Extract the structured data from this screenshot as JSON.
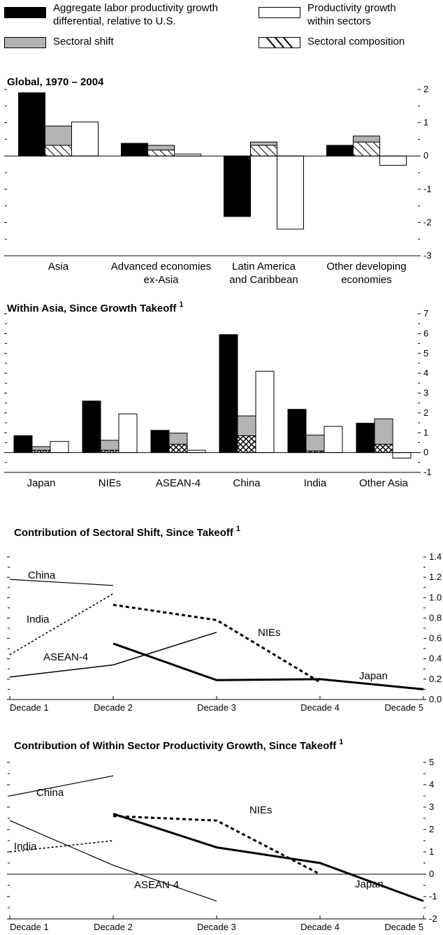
{
  "legend": {
    "aggregate": "Aggregate labor productivity growth\ndifferential, relative to U.S.",
    "within": "Productivity growth\nwithin sectors",
    "shift": "Sectoral shift",
    "composition": "Sectoral composition"
  },
  "chart_data": [
    {
      "type": "bar",
      "title": "Global, 1970 – 2004",
      "categories": [
        "Asia",
        "Advanced economies\nex-Asia",
        "Latin America\nand Caribbean",
        "Other developing\neconomies"
      ],
      "series": [
        {
          "name": "Aggregate labor productivity growth differential, relative to U.S.",
          "values": [
            1.9,
            0.38,
            -1.82,
            0.32
          ]
        },
        {
          "name": "Sectoral composition",
          "values": [
            0.32,
            0.18,
            0.32,
            0.42
          ]
        },
        {
          "name": "Sectoral shift",
          "values": [
            0.58,
            0.14,
            0.1,
            0.18
          ]
        },
        {
          "name": "Productivity growth within sectors",
          "values": [
            1.02,
            0.06,
            -2.2,
            -0.28
          ]
        }
      ],
      "ylim": [
        -3,
        2
      ],
      "yticks": [
        "2",
        "1",
        "0",
        "-1",
        "-2",
        "-3"
      ]
    },
    {
      "type": "bar",
      "title": "Within Asia, Since Growth Takeoff",
      "title_sup": "1",
      "categories": [
        "Japan",
        "NIEs",
        "ASEAN-4",
        "China",
        "India",
        "Other Asia"
      ],
      "series": [
        {
          "name": "Aggregate labor productivity growth differential, relative to U.S.",
          "values": [
            0.85,
            2.6,
            1.12,
            5.95,
            2.18,
            1.48
          ]
        },
        {
          "name": "Sectoral composition",
          "values": [
            0.12,
            0.12,
            0.42,
            0.85,
            0.08,
            0.42
          ]
        },
        {
          "name": "Sectoral shift",
          "values": [
            0.18,
            0.5,
            0.56,
            1.0,
            0.8,
            1.28
          ]
        },
        {
          "name": "Productivity growth within sectors",
          "values": [
            0.56,
            1.95,
            0.12,
            4.1,
            1.32,
            -0.28
          ]
        }
      ],
      "ylim": [
        -1,
        7
      ],
      "yticks": [
        "7",
        "6",
        "5",
        "4",
        "3",
        "2",
        "1",
        "0",
        "-1"
      ]
    },
    {
      "type": "line",
      "title": "Contribution of Sectoral Shift, Since Takeoff",
      "title_sup": "1",
      "x": [
        "Decade 1",
        "Decade 2",
        "Decade 3",
        "Decade 4",
        "Decade 5"
      ],
      "series": [
        {
          "name": "China",
          "values": [
            1.18,
            1.12,
            null,
            null,
            null
          ]
        },
        {
          "name": "India",
          "values": [
            0.44,
            1.04,
            null,
            null,
            null
          ]
        },
        {
          "name": "ASEAN-4",
          "values": [
            0.22,
            0.34,
            0.66,
            null,
            null
          ]
        },
        {
          "name": "NIEs",
          "values": [
            null,
            0.93,
            0.78,
            0.17,
            null
          ]
        },
        {
          "name": "Japan",
          "values": [
            null,
            0.55,
            0.19,
            0.2,
            0.1
          ]
        }
      ],
      "ylim": [
        0,
        1.4
      ],
      "yticks": [
        "1.4",
        "1.2",
        "1.0",
        "0.8",
        "0.6",
        "0.4",
        "0.2",
        "0.0"
      ]
    },
    {
      "type": "line",
      "title": "Contribution of Within Sector Productivity Growth, Since Takeoff",
      "title_sup": "1",
      "x": [
        "Decade 1",
        "Decade 2",
        "Decade 3",
        "Decade 4",
        "Decade 5"
      ],
      "series": [
        {
          "name": "China",
          "values": [
            3.5,
            4.4,
            null,
            null,
            null
          ]
        },
        {
          "name": "India",
          "values": [
            1.0,
            1.5,
            null,
            null,
            null
          ]
        },
        {
          "name": "ASEAN-4",
          "values": [
            2.4,
            0.4,
            -1.2,
            null,
            null
          ]
        },
        {
          "name": "NIEs",
          "values": [
            null,
            2.6,
            2.4,
            0.0,
            null
          ]
        },
        {
          "name": "Japan",
          "values": [
            null,
            2.7,
            1.2,
            0.5,
            -1.2
          ]
        }
      ],
      "ylim": [
        -2,
        5
      ],
      "yticks": [
        "5",
        "4",
        "3",
        "2",
        "1",
        "0",
        "-1",
        "-2"
      ]
    }
  ]
}
